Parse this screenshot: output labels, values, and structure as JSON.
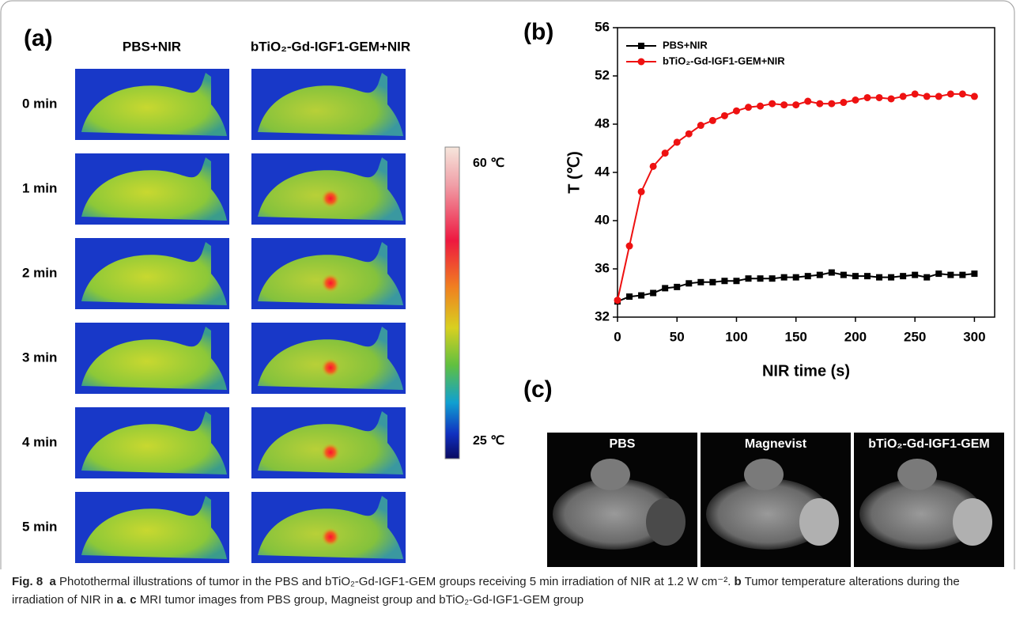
{
  "panel_a": {
    "label": "(a)",
    "columns": [
      "PBS+NIR",
      "bTiO₂-Gd-IGF1-GEM+NIR"
    ],
    "rows": [
      "0 min",
      "1 min",
      "2 min",
      "3 min",
      "4 min",
      "5 min"
    ],
    "colorbar_max": "60 ℃",
    "colorbar_min": "25 ℃"
  },
  "chart_data": {
    "type": "line",
    "label": "(b)",
    "x_label": "NIR time (s)",
    "y_label": "T (℃)",
    "x": [
      0,
      10,
      20,
      30,
      40,
      50,
      60,
      70,
      80,
      90,
      100,
      110,
      120,
      130,
      140,
      150,
      160,
      170,
      180,
      190,
      200,
      210,
      220,
      230,
      240,
      250,
      260,
      270,
      280,
      290,
      300
    ],
    "series": [
      {
        "name": "PBS+NIR",
        "color": "#000000",
        "marker": "square",
        "values": [
          33.3,
          33.7,
          33.8,
          34.0,
          34.4,
          34.5,
          34.8,
          34.9,
          34.9,
          35.0,
          35.0,
          35.2,
          35.2,
          35.2,
          35.3,
          35.3,
          35.4,
          35.5,
          35.7,
          35.5,
          35.4,
          35.4,
          35.3,
          35.3,
          35.4,
          35.5,
          35.3,
          35.6,
          35.5,
          35.5,
          35.6
        ]
      },
      {
        "name": "bTiO₂-Gd-IGF1-GEM+NIR",
        "color": "#ee1111",
        "marker": "circle",
        "values": [
          33.4,
          37.9,
          42.4,
          44.5,
          45.6,
          46.5,
          47.2,
          47.9,
          48.3,
          48.7,
          49.1,
          49.4,
          49.5,
          49.7,
          49.6,
          49.6,
          49.9,
          49.7,
          49.7,
          49.8,
          50.0,
          50.2,
          50.2,
          50.1,
          50.3,
          50.5,
          50.3,
          50.3,
          50.5,
          50.5,
          50.3
        ]
      }
    ],
    "xlim": [
      0,
      317
    ],
    "xticks": [
      0,
      50,
      100,
      150,
      200,
      250,
      300
    ],
    "ylim": [
      32,
      56
    ],
    "yticks": [
      32,
      36,
      40,
      44,
      48,
      52,
      56
    ],
    "legend": "upper-left"
  },
  "panel_c": {
    "label": "(c)",
    "images": [
      "PBS",
      "Magnevist",
      "bTiO₂-Gd-IGF1-GEM"
    ]
  },
  "caption": {
    "label": "Fig. 8",
    "segments": [
      {
        "bold": "a",
        "text": " Photothermal illustrations of tumor in the PBS and bTiO₂-Gd-IGF1-GEM groups receiving 5 min irradiation of NIR at 1.2 W cm⁻². "
      },
      {
        "bold": "b",
        "text": " Tumor temperature alterations during the irradiation of NIR in "
      },
      {
        "bold": "a",
        "text": ". "
      },
      {
        "bold": "c",
        "text": " MRI tumor images from PBS group, Magneist group and bTiO₂-Gd-IGF1-GEM group"
      }
    ]
  }
}
